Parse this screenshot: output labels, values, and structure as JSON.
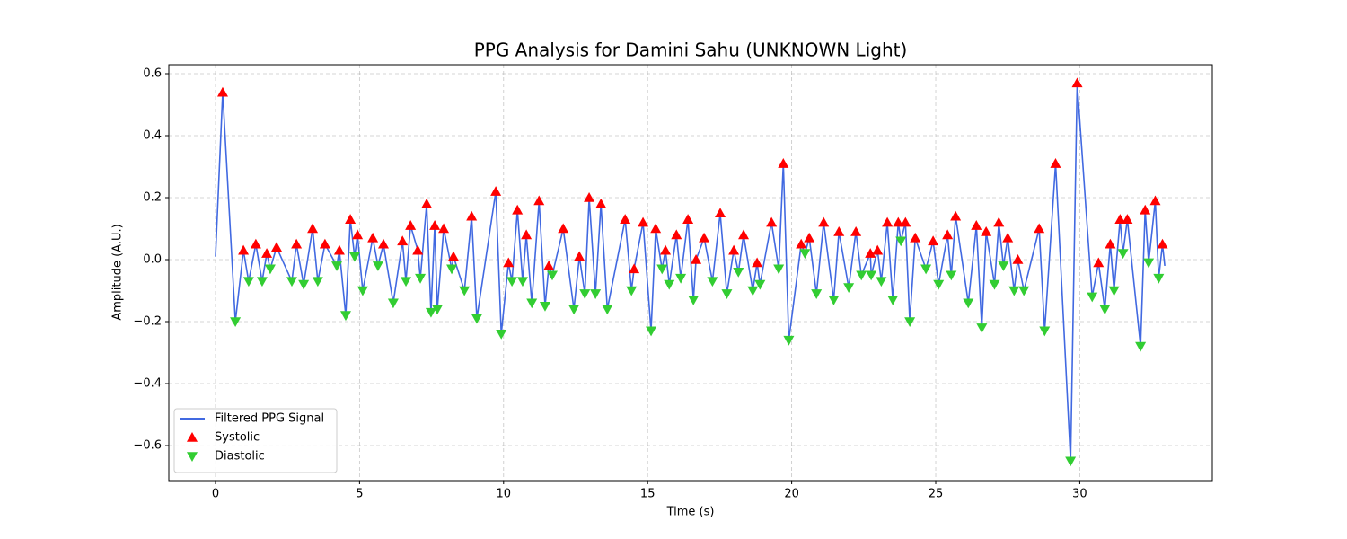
{
  "chart_data": {
    "type": "line",
    "title": "PPG Analysis for Damini Sahu (UNKNOWN Light)",
    "xlabel": "Time (s)",
    "ylabel": "Amplitude (A.U.)",
    "xlim": [
      -1.62,
      34.6
    ],
    "ylim": [
      -0.713,
      0.629
    ],
    "xticks": [
      0,
      5,
      10,
      15,
      20,
      25,
      30
    ],
    "yticks": [
      {
        "value": -0.6,
        "label": "−0.6"
      },
      {
        "value": -0.4,
        "label": "−0.4"
      },
      {
        "value": -0.2,
        "label": "−0.2"
      },
      {
        "value": 0,
        "label": "0.0"
      },
      0.2,
      0.4,
      0.6
    ],
    "grid": true,
    "legend": "lower left",
    "series": [
      {
        "name": "Filtered PPG Signal",
        "color": "#4169e1",
        "mode": "line",
        "x": [
          0,
          0.25,
          0.69,
          0.97,
          1.15,
          1.4,
          1.62,
          1.78,
          1.9,
          2.12,
          2.65,
          2.81,
          3.06,
          3.37,
          3.55,
          3.8,
          4.21,
          4.3,
          4.52,
          4.68,
          4.83,
          4.93,
          5.11,
          5.46,
          5.64,
          5.83,
          6.17,
          6.49,
          6.61,
          6.77,
          7.02,
          7.11,
          7.33,
          7.48,
          7.61,
          7.7,
          7.92,
          8.2,
          8.26,
          8.64,
          8.89,
          9.07,
          9.73,
          9.92,
          10.17,
          10.29,
          10.48,
          10.66,
          10.79,
          10.98,
          11.23,
          11.44,
          11.57,
          11.69,
          12.07,
          12.44,
          12.63,
          12.82,
          12.97,
          13.19,
          13.38,
          13.6,
          14.22,
          14.44,
          14.53,
          14.84,
          15.12,
          15.28,
          15.5,
          15.62,
          15.75,
          16.0,
          16.15,
          16.4,
          16.59,
          16.68,
          16.96,
          17.25,
          17.52,
          17.75,
          17.99,
          18.15,
          18.33,
          18.65,
          18.8,
          18.9,
          19.3,
          19.55,
          19.71,
          19.9,
          20.33,
          20.46,
          20.61,
          20.86,
          21.11,
          21.46,
          21.64,
          21.98,
          22.23,
          22.42,
          22.73,
          22.76,
          22.98,
          23.11,
          23.32,
          23.51,
          23.7,
          23.79,
          23.95,
          24.1,
          24.29,
          24.66,
          24.91,
          25.1,
          25.41,
          25.54,
          25.69,
          26.13,
          26.41,
          26.6,
          26.75,
          27.04,
          27.19,
          27.35,
          27.5,
          27.72,
          27.85,
          28.06,
          28.59,
          28.78,
          29.16,
          29.68,
          29.91,
          30.43,
          30.65,
          30.87,
          31.06,
          31.19,
          31.4,
          31.5,
          31.65,
          32.11,
          32.27,
          32.39,
          32.62,
          32.74,
          32.87,
          32.95
        ],
        "values": [
          0.01,
          0.54,
          -0.2,
          0.03,
          -0.07,
          0.05,
          -0.07,
          0.02,
          -0.03,
          0.04,
          -0.07,
          0.05,
          -0.08,
          0.1,
          -0.07,
          0.05,
          -0.02,
          0.03,
          -0.18,
          0.13,
          0.01,
          0.08,
          -0.1,
          0.07,
          -0.02,
          0.05,
          -0.14,
          0.06,
          -0.07,
          0.11,
          0.03,
          -0.06,
          0.18,
          -0.17,
          0.11,
          -0.16,
          0.1,
          -0.03,
          0.01,
          -0.1,
          0.14,
          -0.19,
          0.22,
          -0.24,
          -0.01,
          -0.07,
          0.16,
          -0.07,
          0.08,
          -0.14,
          0.19,
          -0.15,
          -0.02,
          -0.05,
          0.1,
          -0.16,
          0.01,
          -0.11,
          0.2,
          -0.11,
          0.18,
          -0.16,
          0.13,
          -0.1,
          -0.03,
          0.12,
          -0.23,
          0.1,
          -0.03,
          0.03,
          -0.08,
          0.08,
          -0.06,
          0.13,
          -0.13,
          0.0,
          0.07,
          -0.07,
          0.15,
          -0.11,
          0.03,
          -0.04,
          0.08,
          -0.1,
          -0.01,
          -0.08,
          0.12,
          -0.03,
          0.31,
          -0.26,
          0.05,
          0.02,
          0.07,
          -0.11,
          0.12,
          -0.13,
          0.09,
          -0.09,
          0.09,
          -0.05,
          0.02,
          -0.05,
          0.03,
          -0.07,
          0.12,
          -0.13,
          0.12,
          0.06,
          0.12,
          -0.2,
          0.07,
          -0.03,
          0.06,
          -0.08,
          0.08,
          -0.05,
          0.14,
          -0.14,
          0.11,
          -0.22,
          0.09,
          -0.08,
          0.12,
          -0.02,
          0.07,
          -0.1,
          0.0,
          -0.1,
          0.1,
          -0.23,
          0.31,
          -0.65,
          0.57,
          -0.12,
          -0.01,
          -0.16,
          0.05,
          -0.1,
          0.13,
          0.02,
          0.13,
          -0.28,
          0.16,
          -0.01,
          0.19,
          -0.06,
          0.05,
          -0.02
        ]
      },
      {
        "name": "Systolic",
        "color": "#ff0000",
        "mode": "up",
        "x": [
          0.25,
          0.97,
          1.4,
          1.78,
          2.12,
          2.81,
          3.37,
          3.8,
          4.3,
          4.68,
          4.93,
          5.46,
          5.83,
          6.49,
          6.77,
          7.02,
          7.33,
          7.61,
          7.92,
          8.26,
          8.89,
          9.73,
          10.17,
          10.48,
          10.79,
          11.23,
          11.57,
          12.07,
          12.63,
          12.97,
          13.38,
          14.22,
          14.53,
          14.84,
          15.28,
          15.62,
          16.0,
          16.4,
          16.68,
          16.96,
          17.52,
          17.99,
          18.33,
          18.8,
          19.3,
          19.71,
          20.33,
          20.61,
          21.11,
          21.64,
          22.23,
          22.73,
          22.98,
          23.32,
          23.7,
          23.95,
          24.29,
          24.91,
          25.41,
          25.69,
          26.41,
          26.75,
          27.19,
          27.5,
          27.85,
          28.59,
          29.16,
          29.91,
          30.65,
          31.06,
          31.4,
          31.65,
          32.27,
          32.62,
          32.87
        ],
        "values": [
          0.54,
          0.03,
          0.05,
          0.02,
          0.04,
          0.05,
          0.1,
          0.05,
          0.03,
          0.13,
          0.08,
          0.07,
          0.05,
          0.06,
          0.11,
          0.03,
          0.18,
          0.11,
          0.1,
          0.01,
          0.14,
          0.22,
          -0.01,
          0.16,
          0.08,
          0.19,
          -0.02,
          0.1,
          0.01,
          0.2,
          0.18,
          0.13,
          -0.03,
          0.12,
          0.1,
          0.03,
          0.08,
          0.13,
          0.0,
          0.07,
          0.15,
          0.03,
          0.08,
          -0.01,
          0.12,
          0.31,
          0.05,
          0.07,
          0.12,
          0.09,
          0.09,
          0.02,
          0.03,
          0.12,
          0.12,
          0.12,
          0.07,
          0.06,
          0.08,
          0.14,
          0.11,
          0.09,
          0.12,
          0.07,
          0.0,
          0.1,
          0.31,
          0.57,
          -0.01,
          0.05,
          0.13,
          0.13,
          0.16,
          0.19,
          0.05
        ]
      },
      {
        "name": "Diastolic",
        "color": "#32cd32",
        "mode": "down",
        "x": [
          0.69,
          1.15,
          1.62,
          1.9,
          2.65,
          3.06,
          3.55,
          4.21,
          4.52,
          4.83,
          5.11,
          5.64,
          6.17,
          6.61,
          7.11,
          7.48,
          7.7,
          8.2,
          8.64,
          9.07,
          9.92,
          10.29,
          10.66,
          10.98,
          11.44,
          11.69,
          12.44,
          12.82,
          13.19,
          13.6,
          14.44,
          15.12,
          15.5,
          15.75,
          16.15,
          16.59,
          17.25,
          17.75,
          18.15,
          18.65,
          18.9,
          19.55,
          19.9,
          20.46,
          20.86,
          21.46,
          21.98,
          22.42,
          22.76,
          23.11,
          23.51,
          23.79,
          24.1,
          24.66,
          25.1,
          25.54,
          26.13,
          26.6,
          27.04,
          27.35,
          27.72,
          28.06,
          28.78,
          29.68,
          30.43,
          30.87,
          31.19,
          31.5,
          32.11,
          32.39,
          32.74
        ],
        "values": [
          -0.2,
          -0.07,
          -0.07,
          -0.03,
          -0.07,
          -0.08,
          -0.07,
          -0.02,
          -0.18,
          0.01,
          -0.1,
          -0.02,
          -0.14,
          -0.07,
          -0.06,
          -0.17,
          -0.16,
          -0.03,
          -0.1,
          -0.19,
          -0.24,
          -0.07,
          -0.07,
          -0.14,
          -0.15,
          -0.05,
          -0.16,
          -0.11,
          -0.11,
          -0.16,
          -0.1,
          -0.23,
          -0.03,
          -0.08,
          -0.06,
          -0.13,
          -0.07,
          -0.11,
          -0.04,
          -0.1,
          -0.08,
          -0.03,
          -0.26,
          0.02,
          -0.11,
          -0.13,
          -0.09,
          -0.05,
          -0.05,
          -0.07,
          -0.13,
          0.06,
          -0.2,
          -0.03,
          -0.08,
          -0.05,
          -0.14,
          -0.22,
          -0.08,
          -0.02,
          -0.1,
          -0.1,
          -0.23,
          -0.65,
          -0.12,
          -0.16,
          -0.1,
          0.02,
          -0.28,
          -0.01,
          -0.06
        ]
      }
    ]
  }
}
